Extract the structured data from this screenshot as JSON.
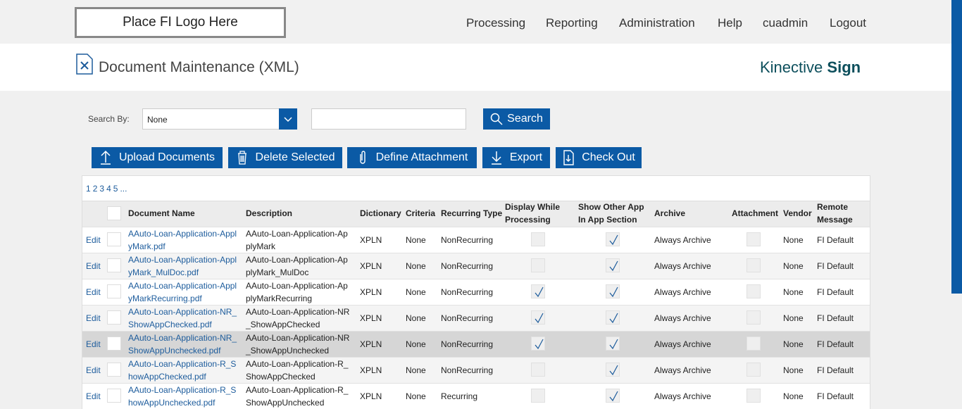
{
  "header": {
    "logo": "Place FI Logo Here",
    "nav": [
      "Processing",
      "Reporting",
      "Administration",
      "Help",
      "cuadmin",
      "Logout"
    ]
  },
  "page": {
    "title": "Document Maintenance (XML)",
    "brand": "Kinective",
    "brand_bold": "Sign"
  },
  "search": {
    "label": "Search By:",
    "selected": "None",
    "button": "Search"
  },
  "toolbar": [
    "Upload Documents",
    "Delete Selected",
    "Define Attachment",
    "Export",
    "Check Out"
  ],
  "pagination": [
    "1",
    "2",
    "3",
    "4",
    "5",
    "..."
  ],
  "table": {
    "columns": [
      "Document Name",
      "Description",
      "Dictionary",
      "Criteria",
      "Recurring Type",
      "Display While Processing",
      "Show Other App In App Section",
      "Archive",
      "Attachment",
      "Vendor",
      "Remote Message"
    ],
    "rows": [
      {
        "action": "Edit",
        "name": "AAuto-Loan-Application-ApplyMark.pdf",
        "description": "AAuto-Loan-Application-ApplyMark",
        "dictionary": "XPLN",
        "criteria": "None",
        "recurring": "NonRecurring",
        "display": false,
        "show_other": true,
        "archive": "Always Archive",
        "attachment": false,
        "vendor": "None",
        "remote": "FI Default"
      },
      {
        "action": "Edit",
        "name": "AAuto-Loan-Application-ApplyMark_MulDoc.pdf",
        "description": "AAuto-Loan-Application-ApplyMark_MulDoc",
        "dictionary": "XPLN",
        "criteria": "None",
        "recurring": "NonRecurring",
        "display": false,
        "show_other": true,
        "archive": "Always Archive",
        "attachment": false,
        "vendor": "None",
        "remote": "FI Default"
      },
      {
        "action": "Edit",
        "name": "AAuto-Loan-Application-ApplyMarkRecurring.pdf",
        "description": "AAuto-Loan-Application-ApplyMarkRecurring",
        "dictionary": "XPLN",
        "criteria": "None",
        "recurring": "NonRecurring",
        "display": true,
        "show_other": true,
        "archive": "Always Archive",
        "attachment": false,
        "vendor": "None",
        "remote": "FI Default"
      },
      {
        "action": "Edit",
        "name": "AAuto-Loan-Application-NR_ShowAppChecked.pdf",
        "description": "AAuto-Loan-Application-NR_ShowAppChecked",
        "dictionary": "XPLN",
        "criteria": "None",
        "recurring": "NonRecurring",
        "display": true,
        "show_other": true,
        "archive": "Always Archive",
        "attachment": false,
        "vendor": "None",
        "remote": "FI Default"
      },
      {
        "action": "Edit",
        "name": "AAuto-Loan-Application-NR_ShowAppUnchecked.pdf",
        "description": "AAuto-Loan-Application-NR_ShowAppUnchecked",
        "dictionary": "XPLN",
        "criteria": "None",
        "recurring": "NonRecurring",
        "display": true,
        "show_other": true,
        "archive": "Always Archive",
        "attachment": false,
        "vendor": "None",
        "remote": "FI Default"
      },
      {
        "action": "Edit",
        "name": "AAuto-Loan-Application-R_ShowAppChecked.pdf",
        "description": "AAuto-Loan-Application-R_ShowAppChecked",
        "dictionary": "XPLN",
        "criteria": "None",
        "recurring": "NonRecurring",
        "display": false,
        "show_other": true,
        "archive": "Always Archive",
        "attachment": false,
        "vendor": "None",
        "remote": "FI Default"
      },
      {
        "action": "Edit",
        "name": "AAuto-Loan-Application-R_ShowAppUnchecked.pdf",
        "description": "AAuto-Loan-Application-R_ShowAppUnchecked",
        "dictionary": "XPLN",
        "criteria": "None",
        "recurring": "Recurring",
        "display": false,
        "show_other": true,
        "archive": "Always Archive",
        "attachment": false,
        "vendor": "None",
        "remote": "FI Default"
      }
    ]
  }
}
